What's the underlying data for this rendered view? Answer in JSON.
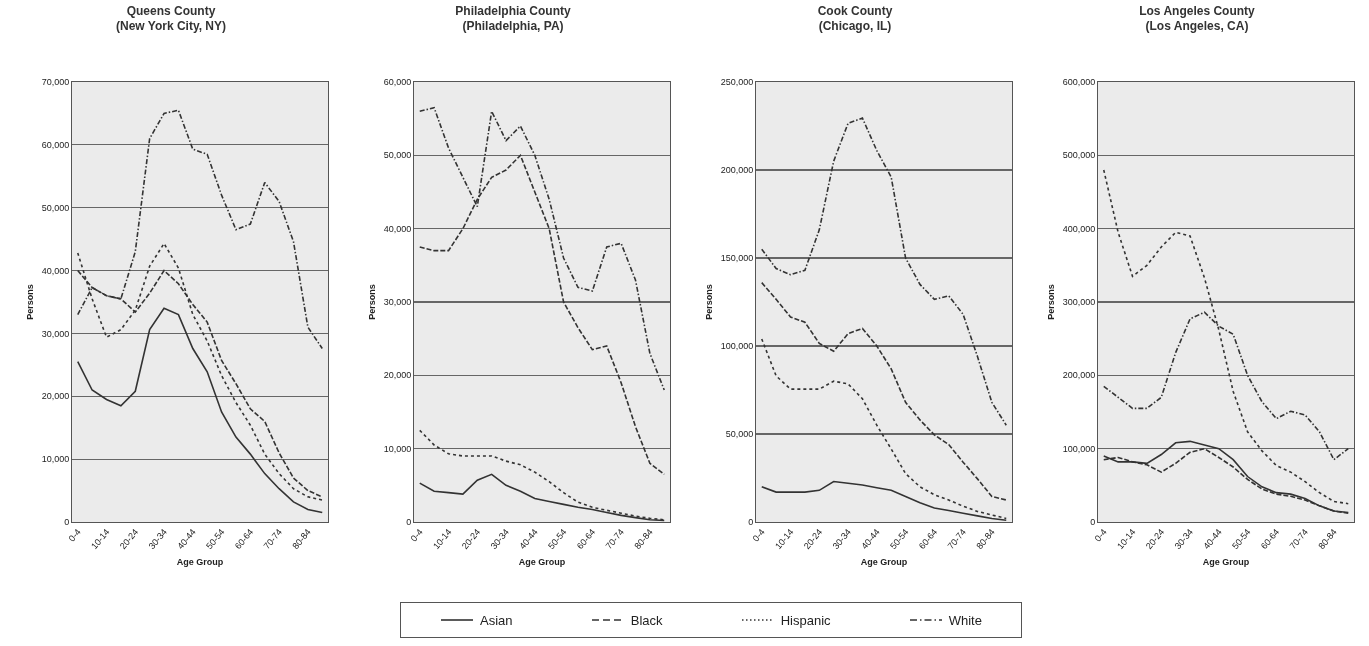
{
  "chart_data": [
    {
      "type": "line",
      "title": "Queens County\n(New York City, NY)",
      "xlabel": "Age Group",
      "ylabel": "Persons",
      "categories": [
        "0-4",
        null,
        "10-14",
        null,
        "20-24",
        null,
        "30-34",
        null,
        "40-44",
        null,
        "50-54",
        null,
        "60-64",
        null,
        "70-74",
        null,
        "80-84",
        null
      ],
      "ylim": [
        0,
        70000
      ],
      "yticks": [
        {
          "value": 0,
          "label": "0"
        },
        {
          "value": 10000,
          "label": "10,000"
        },
        {
          "value": 20000,
          "label": "20,000"
        },
        {
          "value": 30000,
          "label": "30,000"
        },
        {
          "value": 40000,
          "label": "40,000"
        },
        {
          "value": 50000,
          "label": "50,000"
        },
        {
          "value": 60000,
          "label": "60,000"
        },
        {
          "value": 70000,
          "label": "70,000"
        }
      ],
      "grid": "y",
      "legend": "bottom",
      "series": [
        {
          "name": "Asian",
          "color": "#333333",
          "line_style": "solid",
          "values": [
            25500,
            21000,
            19500,
            18500,
            20800,
            30600,
            34000,
            33000,
            27600,
            23900,
            17500,
            13500,
            10800,
            7700,
            5300,
            3200,
            2000,
            1500
          ]
        },
        {
          "name": "Black",
          "color": "#333333",
          "line_style": "dashed",
          "values": [
            40000,
            37300,
            36000,
            35500,
            33400,
            36400,
            40000,
            37900,
            34600,
            31800,
            25700,
            22000,
            18000,
            16000,
            11000,
            7000,
            5000,
            4000
          ]
        },
        {
          "name": "Hispanic",
          "color": "#333333",
          "line_style": "dotted",
          "values": [
            42800,
            35500,
            29400,
            30600,
            33700,
            40700,
            44300,
            40400,
            33000,
            28800,
            23300,
            19000,
            15400,
            10800,
            7700,
            5300,
            4000,
            3500
          ]
        },
        {
          "name": "White",
          "color": "#333333",
          "line_style": "dashdot",
          "values": [
            33000,
            37300,
            36000,
            35500,
            43000,
            61000,
            65000,
            65500,
            59300,
            58500,
            52000,
            46500,
            47400,
            54000,
            51000,
            44600,
            31000,
            27600
          ]
        }
      ]
    },
    {
      "type": "line",
      "title": "Philadelphia County\n(Philadelphia, PA)",
      "xlabel": "Age Group",
      "ylabel": "Persons",
      "categories": [
        "0-4",
        null,
        "10-14",
        null,
        "20-24",
        null,
        "30-34",
        null,
        "40-44",
        null,
        "50-54",
        null,
        "60-64",
        null,
        "70-74",
        null,
        "80-84",
        null
      ],
      "ylim": [
        0,
        60000
      ],
      "yticks": [
        {
          "value": 0,
          "label": "0"
        },
        {
          "value": 10000,
          "label": "10,000"
        },
        {
          "value": 20000,
          "label": "20,000"
        },
        {
          "value": 30000,
          "label": "30,000"
        },
        {
          "value": 40000,
          "label": "40,000"
        },
        {
          "value": 50000,
          "label": "50,000"
        },
        {
          "value": 60000,
          "label": "60,000"
        }
      ],
      "grid": "y",
      "series": [
        {
          "color": "#333333",
          "line_style": "solid",
          "values": [
            5300,
            4200,
            4000,
            3800,
            5700,
            6500,
            5000,
            4200,
            3200,
            2800,
            2400,
            2000,
            1700,
            1300,
            900,
            600,
            300,
            200
          ]
        },
        {
          "color": "#333333",
          "line_style": "dashed",
          "values": [
            37500,
            37000,
            37000,
            40000,
            44000,
            47000,
            48000,
            50000,
            45000,
            40000,
            30000,
            26500,
            23500,
            24000,
            19000,
            13000,
            8000,
            6500
          ]
        },
        {
          "color": "#333333",
          "line_style": "dotted",
          "values": [
            12500,
            10500,
            9300,
            9000,
            9000,
            9000,
            8300,
            7800,
            6800,
            5500,
            4000,
            2700,
            2000,
            1600,
            1200,
            800,
            500,
            300
          ]
        },
        {
          "color": "#333333",
          "line_style": "dashdot",
          "values": [
            56000,
            56500,
            51000,
            47000,
            43000,
            56000,
            52000,
            54000,
            50000,
            44000,
            36000,
            32000,
            31500,
            37500,
            38000,
            33000,
            23000,
            18000
          ]
        }
      ]
    },
    {
      "type": "line",
      "title": "Cook County\n(Chicago, IL)",
      "xlabel": "Age Group",
      "ylabel": "Persons",
      "categories": [
        "0-4",
        null,
        "10-14",
        null,
        "20-24",
        null,
        "30-34",
        null,
        "40-44",
        null,
        "50-54",
        null,
        "60-64",
        null,
        "70-74",
        null,
        "80-84",
        null
      ],
      "ylim": [
        0,
        250000
      ],
      "yticks": [
        {
          "value": 0,
          "label": "0"
        },
        {
          "value": 50000,
          "label": "50,000"
        },
        {
          "value": 100000,
          "label": "100,000"
        },
        {
          "value": 150000,
          "label": "150,000"
        },
        {
          "value": 200000,
          "label": "200,000"
        },
        {
          "value": 250000,
          "label": "250,000"
        }
      ],
      "grid": "y",
      "series": [
        {
          "color": "#333333",
          "line_style": "solid",
          "values": [
            20000,
            17000,
            17000,
            17000,
            18000,
            23000,
            22000,
            21000,
            19500,
            18000,
            14500,
            11000,
            8000,
            6500,
            5000,
            3500,
            2000,
            1000
          ]
        },
        {
          "color": "#333333",
          "line_style": "dashed",
          "values": [
            136000,
            126500,
            116500,
            113500,
            101500,
            97000,
            107000,
            110000,
            100000,
            87000,
            68000,
            58000,
            49500,
            44000,
            34000,
            24500,
            14500,
            12500
          ]
        },
        {
          "color": "#333333",
          "line_style": "dotted",
          "values": [
            104000,
            83000,
            75500,
            75500,
            75500,
            80000,
            78500,
            70000,
            55000,
            41500,
            27500,
            20000,
            15500,
            12500,
            9000,
            6000,
            4000,
            2000
          ]
        },
        {
          "color": "#333333",
          "line_style": "dashdot",
          "values": [
            155000,
            144000,
            140500,
            143000,
            166000,
            205000,
            226500,
            229500,
            211000,
            196000,
            150000,
            135000,
            126500,
            128500,
            118000,
            94000,
            68000,
            55000
          ]
        }
      ]
    },
    {
      "type": "line",
      "title": "Los Angeles County\n(Los Angeles, CA)",
      "xlabel": "Age Group",
      "ylabel": "Persons",
      "categories": [
        "0-4",
        null,
        "10-14",
        null,
        "20-24",
        null,
        "30-34",
        null,
        "40-44",
        null,
        "50-54",
        null,
        "60-64",
        null,
        "70-74",
        null,
        "80-84",
        null
      ],
      "ylim": [
        0,
        600000
      ],
      "yticks": [
        {
          "value": 0,
          "label": "0"
        },
        {
          "value": 100000,
          "label": "100,000"
        },
        {
          "value": 200000,
          "label": "200,000"
        },
        {
          "value": 300000,
          "label": "300,000"
        },
        {
          "value": 400000,
          "label": "400,000"
        },
        {
          "value": 500000,
          "label": "500,000"
        },
        {
          "value": 600000,
          "label": "600,000"
        }
      ],
      "grid": "y",
      "series": [
        {
          "color": "#333333",
          "line_style": "solid",
          "values": [
            90000,
            82000,
            82000,
            80000,
            92000,
            108000,
            110000,
            105000,
            100000,
            85000,
            62000,
            48000,
            40000,
            38000,
            32000,
            22000,
            15000,
            13000
          ]
        },
        {
          "color": "#333333",
          "line_style": "dashed",
          "values": [
            85000,
            88000,
            82000,
            78000,
            68000,
            80000,
            95000,
            100000,
            88000,
            75000,
            58000,
            45000,
            38000,
            35000,
            30000,
            22000,
            15000,
            12000
          ]
        },
        {
          "color": "#333333",
          "line_style": "dotted",
          "values": [
            480000,
            395000,
            335000,
            350000,
            375000,
            395000,
            390000,
            333000,
            262000,
            178000,
            123000,
            97000,
            77000,
            68000,
            55000,
            40000,
            28000,
            25000
          ]
        },
        {
          "color": "#333333",
          "line_style": "dashdot",
          "values": [
            185000,
            170000,
            155000,
            155000,
            170000,
            231000,
            277000,
            286000,
            267000,
            256000,
            200000,
            164000,
            141000,
            151000,
            146000,
            123000,
            85000,
            100000
          ]
        }
      ]
    }
  ]
}
